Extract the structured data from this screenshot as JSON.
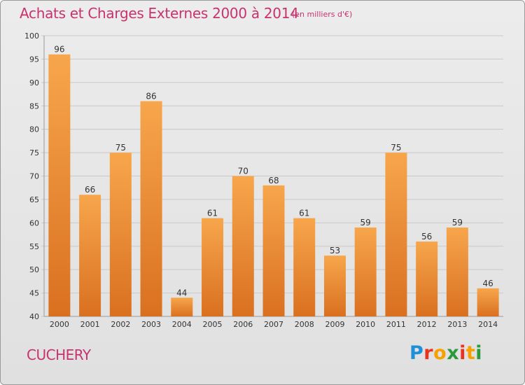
{
  "header": {
    "title": "Achats et Charges Externes 2000 à 2014",
    "subtitle": "(en milliers d'€)"
  },
  "footer": {
    "commune": "CUCHERY",
    "brand": "Proxiti"
  },
  "colors": {
    "accent": "#c8326e",
    "bar_light": "#f7a64c",
    "bar_dark": "#d97020"
  },
  "chart_data": {
    "type": "bar",
    "categories": [
      "2000",
      "2001",
      "2002",
      "2003",
      "2004",
      "2005",
      "2006",
      "2007",
      "2008",
      "2009",
      "2010",
      "2011",
      "2012",
      "2013",
      "2014"
    ],
    "values": [
      96,
      66,
      75,
      86,
      44,
      61,
      70,
      68,
      61,
      53,
      59,
      75,
      56,
      59,
      46
    ],
    "ylim": [
      40,
      100
    ],
    "yticks": [
      40,
      45,
      50,
      55,
      60,
      65,
      70,
      75,
      80,
      85,
      90,
      95,
      100
    ],
    "grid": true,
    "data_labels": true
  }
}
